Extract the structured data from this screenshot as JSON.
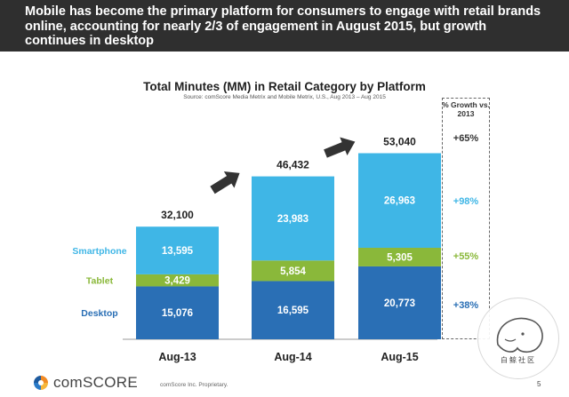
{
  "slide": {
    "headline": "Mobile has become the primary platform for consumers to engage with retail brands online, accounting for nearly 2/3 of engagement in August 2015, but growth continues in desktop",
    "footer_brand": "comSCORE",
    "footer_note": "comScore Inc.  Proprietary.",
    "page_number": "5",
    "watermark_text": "白鲸社区"
  },
  "growth": {
    "header": "% Growth vs. 2013",
    "smartphone": "+98%",
    "total": "+65%",
    "tablet": "+55%",
    "desktop": "+38%",
    "colors": {
      "smartphone": "#3fb6e6",
      "tablet": "#8ab83a",
      "desktop": "#2a6fb5",
      "total": "#333333"
    }
  },
  "chart_data": {
    "type": "bar",
    "stacked": true,
    "title": "Total Minutes (MM) in Retail Category by Platform",
    "subtitle": "Source: comScore Media Metrix and Mobile Metrix, U.S., Aug 2013 – Aug 2015",
    "categories": [
      "Aug-13",
      "Aug-14",
      "Aug-15"
    ],
    "series": [
      {
        "name": "Desktop",
        "values": [
          15076,
          16595,
          20773
        ],
        "labels": [
          "15,076",
          "16,595",
          "20,773"
        ],
        "color": "#2a6fb5"
      },
      {
        "name": "Tablet",
        "values": [
          3429,
          5854,
          5305
        ],
        "labels": [
          "3,429",
          "5,854",
          "5,305"
        ],
        "color": "#8ab83a"
      },
      {
        "name": "Smartphone",
        "values": [
          13595,
          23983,
          26963
        ],
        "labels": [
          "13,595",
          "23,983",
          "26,963"
        ],
        "color": "#3fb6e6"
      }
    ],
    "totals": [
      32100,
      46432,
      53040
    ],
    "total_labels": [
      "32,100",
      "46,432",
      "53,040"
    ],
    "legend_position": "left",
    "grid": false,
    "ylim": [
      0,
      60000
    ]
  }
}
